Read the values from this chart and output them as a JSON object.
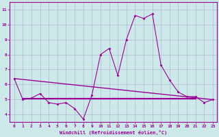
{
  "line1_x": [
    0,
    1,
    2,
    3,
    4,
    5,
    6,
    7,
    8,
    9,
    10,
    11,
    12,
    13,
    14,
    15,
    16,
    17,
    18,
    19,
    20,
    21,
    22,
    23
  ],
  "line1_y": [
    6.4,
    5.0,
    5.1,
    5.4,
    4.8,
    4.7,
    4.8,
    4.4,
    3.7,
    5.3,
    8.0,
    8.4,
    6.6,
    9.0,
    10.6,
    10.4,
    10.7,
    7.3,
    6.3,
    5.5,
    5.2,
    5.2,
    4.8,
    5.0
  ],
  "line2_x": [
    0,
    23
  ],
  "line2_y": [
    6.4,
    5.0
  ],
  "line3_x": [
    1,
    21
  ],
  "line3_y": [
    5.05,
    5.05
  ],
  "line_color": "#990099",
  "bg_color": "#cce8e8",
  "grid_color": "#b0b8d0",
  "xlabel": "Windchill (Refroidissement éolien,°C)",
  "xlim": [
    -0.5,
    23.5
  ],
  "ylim": [
    3.5,
    11.5
  ],
  "yticks": [
    4,
    5,
    6,
    7,
    8,
    9,
    10,
    11
  ],
  "xticks": [
    0,
    1,
    2,
    3,
    4,
    5,
    6,
    7,
    8,
    9,
    10,
    11,
    12,
    13,
    14,
    15,
    16,
    17,
    18,
    19,
    20,
    21,
    22,
    23
  ]
}
